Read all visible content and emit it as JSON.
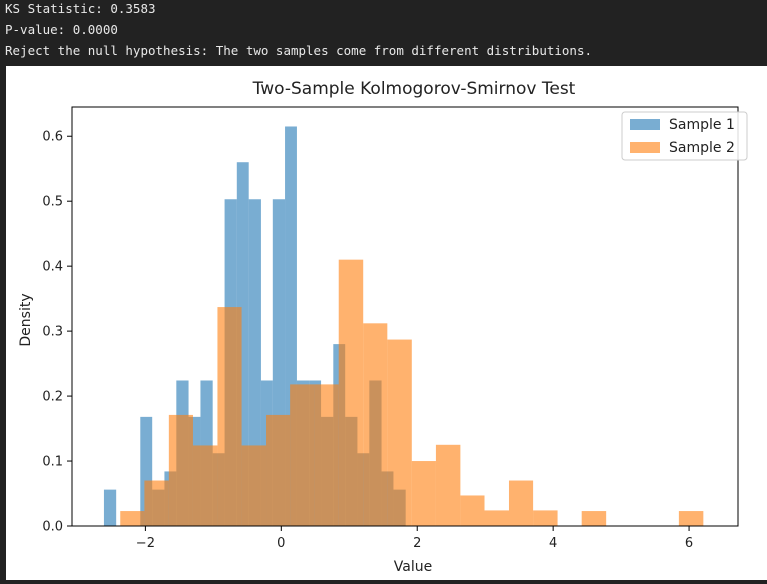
{
  "console": {
    "lines": [
      "KS Statistic: 0.3583",
      "P-value: 0.0000",
      "Reject the null hypothesis: The two samples come from different distributions."
    ]
  },
  "chart_data": {
    "type": "histogram",
    "title": "Two-Sample Kolmogorov-Smirnov Test",
    "xlabel": "Value",
    "ylabel": "Density",
    "xlim": [
      -3.08,
      6.72
    ],
    "ylim": [
      0,
      0.645
    ],
    "xticks": [
      -2,
      0,
      2,
      4,
      6
    ],
    "xtick_labels": [
      "−2",
      "0",
      "2",
      "4",
      "6"
    ],
    "yticks": [
      0.0,
      0.1,
      0.2,
      0.3,
      0.4,
      0.5,
      0.6
    ],
    "ytick_labels": [
      "0.0",
      "0.1",
      "0.2",
      "0.3",
      "0.4",
      "0.5",
      "0.6"
    ],
    "legend_position": "top-right",
    "grid": false,
    "series": [
      {
        "name": "Sample 1",
        "color": "#1f77b4",
        "alpha": 0.6,
        "bin_edges": [
          -2.61,
          -2.43,
          -2.255,
          -2.075,
          -1.9,
          -1.72,
          -1.545,
          -1.365,
          -1.19,
          -1.01,
          -0.835,
          -0.655,
          -0.48,
          -0.3,
          -0.125,
          0.055,
          0.23,
          0.41,
          0.585,
          0.765,
          0.94,
          1.12,
          1.295,
          1.475,
          1.65,
          1.83
        ],
        "values": [
          0.056,
          0.0,
          0.0,
          0.168,
          0.056,
          0.084,
          0.224,
          0.168,
          0.224,
          0.112,
          0.503,
          0.56,
          0.503,
          0.224,
          0.503,
          0.615,
          0.224,
          0.224,
          0.168,
          0.28,
          0.168,
          0.112,
          0.224,
          0.084,
          0.056
        ]
      },
      {
        "name": "Sample 2",
        "color": "#ff7f0e",
        "alpha": 0.6,
        "bin_edges": [
          -2.37,
          -2.015,
          -1.655,
          -1.3,
          -0.94,
          -0.585,
          -0.225,
          0.13,
          0.49,
          0.845,
          1.205,
          1.56,
          1.92,
          2.275,
          2.635,
          2.99,
          3.35,
          3.705,
          4.065,
          4.42,
          4.78,
          5.135,
          5.495,
          5.85,
          6.21
        ],
        "values": [
          0.023,
          0.07,
          0.171,
          0.124,
          0.337,
          0.124,
          0.171,
          0.218,
          0.218,
          0.41,
          0.312,
          0.287,
          0.1,
          0.125,
          0.047,
          0.024,
          0.07,
          0.024,
          0.0,
          0.023,
          0.0,
          0.0,
          0.0,
          0.023
        ]
      }
    ]
  }
}
